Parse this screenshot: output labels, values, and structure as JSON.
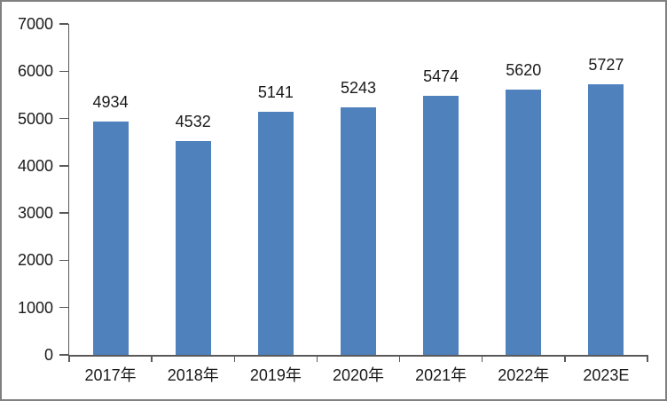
{
  "chart_data": {
    "type": "bar",
    "categories": [
      "2017年",
      "2018年",
      "2019年",
      "2020年",
      "2021年",
      "2022年",
      "2023E"
    ],
    "values": [
      4934,
      4532,
      5141,
      5243,
      5474,
      5620,
      5727
    ],
    "data_labels": [
      "4934",
      "4532",
      "5141",
      "5243",
      "5474",
      "5620",
      "5727"
    ],
    "title": "",
    "xlabel": "",
    "ylabel": "",
    "ylim": [
      0,
      7000
    ],
    "ytick_step": 1000,
    "ytick_labels": [
      "0",
      "1000",
      "2000",
      "3000",
      "4000",
      "5000",
      "6000",
      "7000"
    ],
    "grid": false,
    "legend": false,
    "show_data_labels": true,
    "colors": {
      "bar": "#4F81BD",
      "axis": "#595959",
      "text": "#1a1a1a",
      "frame_border": "#808080",
      "background": "#ffffff"
    }
  }
}
